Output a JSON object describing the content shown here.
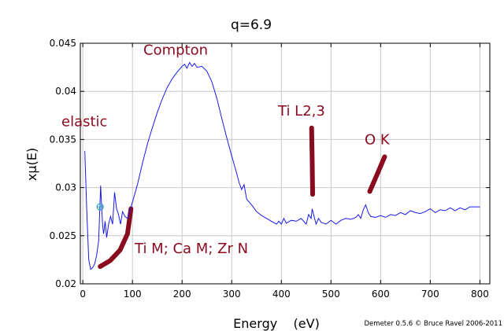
{
  "chart_data": {
    "type": "line",
    "title": "q=6.9",
    "xlabel": "Energy    (eV)",
    "ylabel": "xμ(E)",
    "xlim": [
      -5,
      820
    ],
    "ylim": [
      0.02,
      0.045
    ],
    "xticks": [
      0,
      100,
      200,
      300,
      400,
      500,
      600,
      700,
      800
    ],
    "yticks": [
      0.02,
      0.025,
      0.03,
      0.035,
      0.04,
      0.045
    ],
    "ytick_labels": [
      "0.02",
      "0.025",
      "0.03",
      "0.035",
      "0.04",
      "0.045"
    ],
    "grid": true,
    "line_color": "#1a1aee",
    "annotation_color": "#8a0a1e",
    "marker": {
      "x": 35,
      "y": 0.028,
      "color": "#2a9db5"
    },
    "series": [
      {
        "x": [
          4,
          8,
          12,
          16,
          20,
          24,
          28,
          32,
          34,
          36,
          38,
          40,
          42,
          45,
          48,
          52,
          56,
          60,
          64,
          68,
          72,
          76,
          80,
          85,
          90,
          95,
          100,
          110,
          120,
          130,
          140,
          150,
          160,
          170,
          180,
          190,
          200,
          205,
          210,
          215,
          220,
          225,
          230,
          240,
          250,
          260,
          270,
          280,
          290,
          300,
          310,
          315,
          320,
          325,
          330,
          340,
          350,
          360,
          370,
          380,
          390,
          395,
          400,
          405,
          410,
          420,
          430,
          440,
          450,
          455,
          460,
          462,
          465,
          470,
          475,
          480,
          490,
          500,
          510,
          520,
          530,
          540,
          550,
          555,
          560,
          565,
          570,
          575,
          580,
          590,
          600,
          610,
          620,
          630,
          640,
          650,
          660,
          670,
          680,
          690,
          700,
          710,
          720,
          730,
          740,
          750,
          760,
          770,
          780,
          790,
          800
        ],
        "values": [
          0.0338,
          0.0275,
          0.0225,
          0.0215,
          0.0217,
          0.0221,
          0.023,
          0.0245,
          0.0275,
          0.0302,
          0.028,
          0.026,
          0.0252,
          0.0265,
          0.0248,
          0.0262,
          0.027,
          0.0262,
          0.0295,
          0.0278,
          0.0272,
          0.0262,
          0.0275,
          0.027,
          0.0268,
          0.0276,
          0.0285,
          0.0303,
          0.0325,
          0.0345,
          0.0362,
          0.0378,
          0.0392,
          0.0404,
          0.0413,
          0.042,
          0.0426,
          0.0428,
          0.0424,
          0.043,
          0.0426,
          0.0429,
          0.0425,
          0.0426,
          0.0421,
          0.041,
          0.0393,
          0.0372,
          0.0352,
          0.0333,
          0.0315,
          0.0305,
          0.0298,
          0.0303,
          0.0288,
          0.0282,
          0.0275,
          0.0271,
          0.0268,
          0.0265,
          0.0262,
          0.0265,
          0.0262,
          0.0268,
          0.0263,
          0.0266,
          0.0265,
          0.0268,
          0.0262,
          0.0272,
          0.0268,
          0.0278,
          0.0272,
          0.0262,
          0.0268,
          0.0264,
          0.0262,
          0.0266,
          0.0262,
          0.0266,
          0.0268,
          0.0267,
          0.0269,
          0.0272,
          0.0268,
          0.0277,
          0.0282,
          0.0274,
          0.027,
          0.0269,
          0.0271,
          0.0269,
          0.0272,
          0.0271,
          0.0274,
          0.0272,
          0.0276,
          0.0274,
          0.0273,
          0.0275,
          0.0278,
          0.0274,
          0.0277,
          0.0276,
          0.0279,
          0.0276,
          0.0279,
          0.0277,
          0.028,
          0.028,
          0.028
        ]
      }
    ],
    "annotations": [
      {
        "text": "Compton",
        "x": 200,
        "y": 0.0438
      },
      {
        "text": "elastic",
        "x": 0,
        "y": 0.0364
      },
      {
        "text": "Ti L2,3",
        "x": 460,
        "y": 0.0375
      },
      {
        "text": "O K",
        "x": 585,
        "y": 0.0345
      },
      {
        "text": "Ti M; Ca M; Zr N",
        "x": 175,
        "y": 0.0232
      }
    ],
    "annotation_strokes": [
      {
        "name": "ti-m-marker-stroke",
        "points": [
          [
            35,
            0.0218
          ],
          [
            55,
            0.0224
          ],
          [
            75,
            0.0235
          ],
          [
            90,
            0.0252
          ],
          [
            97,
            0.0278
          ]
        ]
      },
      {
        "name": "ti-l-marker-stroke",
        "points": [
          [
            461,
            0.0362
          ],
          [
            462,
            0.033
          ],
          [
            463,
            0.0293
          ]
        ]
      },
      {
        "name": "o-k-marker-stroke",
        "points": [
          [
            578,
            0.0296
          ],
          [
            594,
            0.0315
          ],
          [
            608,
            0.0332
          ]
        ]
      }
    ]
  },
  "credit": "Demeter 0.5.6 © Bruce Ravel 2006-2011"
}
